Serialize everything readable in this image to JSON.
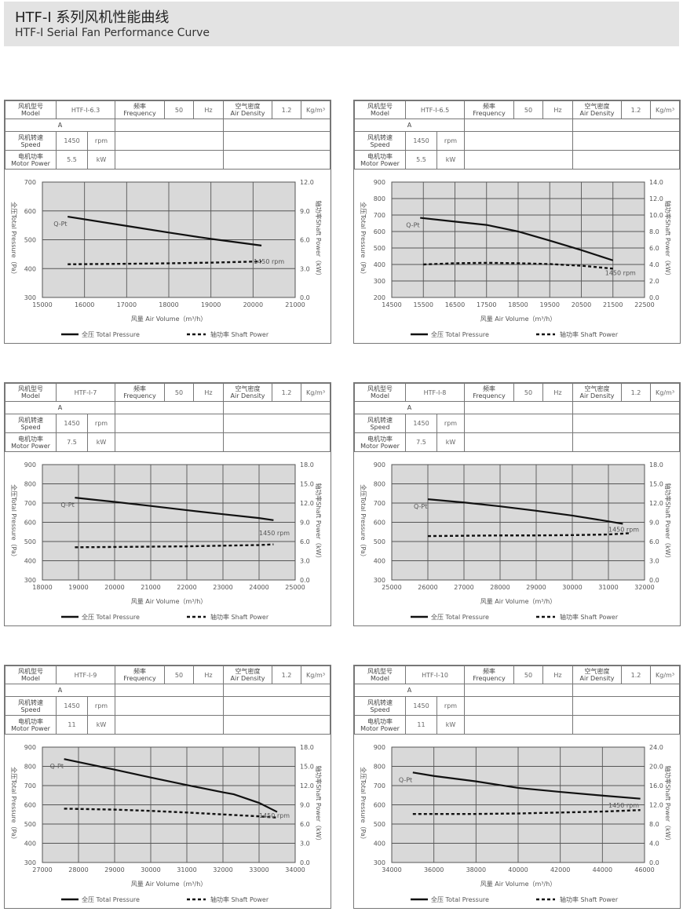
{
  "header": {
    "title_cn": "HTF-I 系列风机性能曲线",
    "title_en": "HTF-I Serial Fan Performance Curve"
  },
  "labels": {
    "model": [
      "风机型号",
      "Model"
    ],
    "frequency": [
      "频率",
      "Frequency"
    ],
    "air_density": [
      "空气密度",
      "Air Density"
    ],
    "speed": [
      "风机转速",
      "Speed"
    ],
    "motor_power": [
      "电机功率",
      "Motor Power"
    ],
    "hz": "Hz",
    "density_unit": "Kg/m³",
    "rpm": "rpm",
    "kw": "kW",
    "freq_value": "50",
    "density_value": "1.2",
    "speed_value": "1450",
    "row_a": "A"
  },
  "colors": {
    "plot_bg": "#d9d9d9",
    "grid": "#555555",
    "curve": "#111111",
    "header_bg": "#e3e3e3"
  },
  "chart_data": [
    {
      "type": "line",
      "model": "HTF-I-6.3",
      "motor_power": "5.5",
      "xlabel": "风量 Air Volume（m³/h）",
      "ylabel": "全压Total Pressure（Pa）",
      "y2label": "轴功率Shaft Power（kW）",
      "xticks": [
        "15000",
        "16000",
        "17000",
        "18000",
        "19000",
        "20000",
        "21000"
      ],
      "xlim": [
        15000,
        21000
      ],
      "yticks": [
        "700",
        "600",
        "500",
        "400",
        "300"
      ],
      "ylim": [
        300,
        700
      ],
      "y2ticks": [
        "12.0",
        "9.0",
        "6.0",
        "3.0",
        "0.0"
      ],
      "y2lim": [
        0,
        12
      ],
      "grid": true,
      "legend": "bottom",
      "series": [
        {
          "name": "全压 Total Pressure",
          "label": "Q-Pt",
          "axis": "left",
          "style": "solid",
          "x": [
            15600,
            17000,
            18000,
            19000,
            20200
          ],
          "y": [
            580,
            548,
            525,
            503,
            480
          ]
        },
        {
          "name": "轴功率 Shaft Power",
          "label": "1450 rpm",
          "axis": "right",
          "style": "dashed",
          "x": [
            15600,
            17000,
            18000,
            19000,
            20200
          ],
          "y": [
            3.45,
            3.5,
            3.55,
            3.62,
            3.75
          ]
        }
      ]
    },
    {
      "type": "line",
      "model": "HTF-I-6.5",
      "motor_power": "5.5",
      "xlabel": "风量 Air Volume（m³/h）",
      "ylabel": "全压Total Pressure（Pa）",
      "y2label": "轴功率Shaft Power（kW）",
      "xticks": [
        "14500",
        "15500",
        "16500",
        "17500",
        "18500",
        "19500",
        "20500",
        "21500",
        "22500"
      ],
      "xlim": [
        14500,
        22500
      ],
      "yticks": [
        "900",
        "800",
        "700",
        "600",
        "500",
        "400",
        "300",
        "200"
      ],
      "ylim": [
        200,
        900
      ],
      "y2ticks": [
        "14.0",
        "12.0",
        "10.0",
        "8.0",
        "6.0",
        "4.0",
        "2.0",
        "0.0"
      ],
      "y2lim": [
        0,
        14
      ],
      "grid": true,
      "legend": "bottom",
      "series": [
        {
          "name": "全压 Total Pressure",
          "label": "Q-Pt",
          "axis": "left",
          "style": "solid",
          "x": [
            15400,
            16500,
            17500,
            18500,
            19500,
            20500,
            21500
          ],
          "y": [
            683,
            660,
            640,
            600,
            545,
            487,
            425
          ]
        },
        {
          "name": "轴功率 Shaft Power",
          "label": "1450 rpm",
          "axis": "right",
          "style": "dashed",
          "x": [
            15500,
            16500,
            17500,
            18500,
            19500,
            20500,
            21500
          ],
          "y": [
            4.0,
            4.15,
            4.2,
            4.15,
            4.05,
            3.85,
            3.5
          ]
        }
      ]
    },
    {
      "type": "line",
      "model": "HTF-I-7",
      "motor_power": "7.5",
      "xlabel": "风量 Air Volume（m³/h）",
      "ylabel": "全压Total Pressure（Pa）",
      "y2label": "轴功率Shaft Power（kW）",
      "xticks": [
        "18000",
        "19000",
        "20000",
        "21000",
        "22000",
        "23000",
        "24000",
        "25000"
      ],
      "xlim": [
        18000,
        25000
      ],
      "yticks": [
        "900",
        "800",
        "700",
        "600",
        "500",
        "400",
        "300"
      ],
      "ylim": [
        300,
        900
      ],
      "y2ticks": [
        "18.0",
        "15.0",
        "12.0",
        "9.0",
        "6.0",
        "3.0",
        "0.0"
      ],
      "y2lim": [
        0,
        18
      ],
      "grid": true,
      "legend": "bottom",
      "series": [
        {
          "name": "全压 Total Pressure",
          "label": "Q-Pt",
          "axis": "left",
          "style": "solid",
          "x": [
            18900,
            20000,
            21000,
            22000,
            23000,
            24000,
            24400
          ],
          "y": [
            728,
            706,
            685,
            663,
            642,
            622,
            611
          ]
        },
        {
          "name": "轴功率 Shaft Power",
          "label": "1450 rpm",
          "axis": "right",
          "style": "dashed",
          "x": [
            18900,
            20000,
            21000,
            22000,
            23000,
            24000,
            24400
          ],
          "y": [
            5.1,
            5.15,
            5.2,
            5.25,
            5.35,
            5.45,
            5.55
          ]
        }
      ]
    },
    {
      "type": "line",
      "model": "HTF-I-8",
      "motor_power": "7.5",
      "xlabel": "风量 Air Volume（m³/h）",
      "ylabel": "全压Total Pressure（Pa）",
      "y2label": "轴功率Shaft Power（kW）",
      "xticks": [
        "25000",
        "26000",
        "27000",
        "28000",
        "29000",
        "30000",
        "31000",
        "32000"
      ],
      "xlim": [
        25000,
        32000
      ],
      "yticks": [
        "900",
        "800",
        "700",
        "600",
        "500",
        "400",
        "300"
      ],
      "ylim": [
        300,
        900
      ],
      "y2ticks": [
        "18.0",
        "15.0",
        "12.0",
        "9.0",
        "6.0",
        "3.0",
        "0.0"
      ],
      "y2lim": [
        0,
        18
      ],
      "grid": true,
      "legend": "bottom",
      "series": [
        {
          "name": "全压 Total Pressure",
          "label": "Q-Pt",
          "axis": "left",
          "style": "solid",
          "x": [
            26000,
            27000,
            28000,
            29000,
            30000,
            31000,
            31400
          ],
          "y": [
            720,
            703,
            683,
            660,
            635,
            605,
            592
          ]
        },
        {
          "name": "轴功率 Shaft Power",
          "label": "1450 rpm",
          "axis": "right",
          "style": "dashed",
          "x": [
            26000,
            27000,
            28000,
            29000,
            30000,
            31000,
            31600
          ],
          "y": [
            6.85,
            6.9,
            6.95,
            6.95,
            7.0,
            7.1,
            7.3
          ]
        }
      ]
    },
    {
      "type": "line",
      "model": "HTF-I-9",
      "motor_power": "11",
      "xlabel": "风量 Air Volume（m³/h）",
      "ylabel": "全压Total Pressure（Pa）",
      "y2label": "轴功率Shaft Power（kW）",
      "xticks": [
        "27000",
        "28000",
        "29000",
        "30000",
        "31000",
        "32000",
        "33000",
        "34000"
      ],
      "xlim": [
        27000,
        34000
      ],
      "yticks": [
        "900",
        "800",
        "700",
        "600",
        "500",
        "400",
        "300"
      ],
      "ylim": [
        300,
        900
      ],
      "y2ticks": [
        "18.0",
        "15.0",
        "12.0",
        "9.0",
        "6.0",
        "3.0",
        "0.0"
      ],
      "y2lim": [
        0,
        18
      ],
      "grid": true,
      "legend": "bottom",
      "series": [
        {
          "name": "全压 Total Pressure",
          "label": "Q-Pt",
          "axis": "left",
          "style": "solid",
          "x": [
            27600,
            29000,
            30000,
            31000,
            32000,
            32300,
            33000,
            33500
          ],
          "y": [
            838,
            783,
            742,
            703,
            665,
            655,
            610,
            563
          ]
        },
        {
          "name": "轴功率 Shaft Power",
          "label": "1450 rpm",
          "axis": "right",
          "style": "dashed",
          "x": [
            27600,
            29000,
            30000,
            31000,
            32000,
            33000,
            33500
          ],
          "y": [
            8.4,
            8.25,
            8.05,
            7.8,
            7.5,
            7.2,
            7.0
          ]
        }
      ]
    },
    {
      "type": "line",
      "model": "HTF-I-10",
      "motor_power": "11",
      "xlabel": "风量 Air Volume（m³/h）",
      "ylabel": "全压Total Pressure（Pa）",
      "y2label": "轴功率Shaft Power（kW）",
      "xticks": [
        "34000",
        "36000",
        "38000",
        "40000",
        "42000",
        "44000",
        "46000"
      ],
      "xlim": [
        34000,
        46000
      ],
      "yticks": [
        "900",
        "800",
        "700",
        "600",
        "500",
        "400",
        "300"
      ],
      "ylim": [
        300,
        900
      ],
      "y2ticks": [
        "24.0",
        "20.0",
        "16.0",
        "12.0",
        "8.0",
        "4.0",
        "0.0"
      ],
      "y2lim": [
        0,
        24
      ],
      "grid": true,
      "legend": "bottom",
      "series": [
        {
          "name": "全压 Total Pressure",
          "label": "Q-Pt",
          "axis": "left",
          "style": "solid",
          "x": [
            35000,
            36000,
            38000,
            40000,
            42000,
            44000,
            45800
          ],
          "y": [
            768,
            750,
            722,
            688,
            667,
            648,
            632
          ]
        },
        {
          "name": "轴功率 Shaft Power",
          "label": "1450 rpm",
          "axis": "right",
          "style": "dashed",
          "x": [
            35000,
            38000,
            40000,
            42000,
            44000,
            45800
          ],
          "y": [
            10.1,
            10.1,
            10.2,
            10.4,
            10.6,
            10.9
          ]
        }
      ]
    }
  ]
}
